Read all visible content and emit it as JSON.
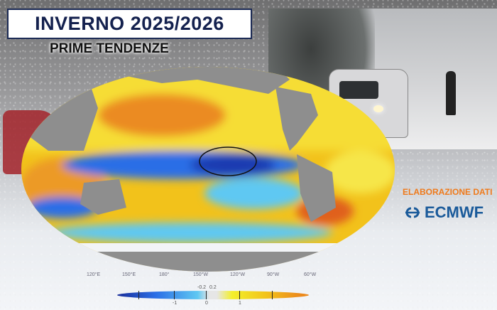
{
  "title": "INVERNO 2025/2026",
  "subtitle": "PRIME TENDENZE",
  "credit": {
    "label": "ELABORAZIONE DATI",
    "brand": "ECMWF",
    "brand_color": "#1a5a9a",
    "label_color": "#ef7a1b"
  },
  "map": {
    "longitude_labels": [
      "120°E",
      "150°E",
      "180°",
      "150°W",
      "120°W",
      "90°W",
      "60°W"
    ],
    "colorbar": {
      "labels": [
        "-1",
        "0",
        "1"
      ],
      "inner_labels": [
        "-0.2",
        "0.2"
      ],
      "colors": [
        "#1a2e9a",
        "#2a6ee6",
        "#5fc8f2",
        "#e6e6e6",
        "#f3ef2a",
        "#f2c21b",
        "#ec8a1c"
      ]
    }
  }
}
